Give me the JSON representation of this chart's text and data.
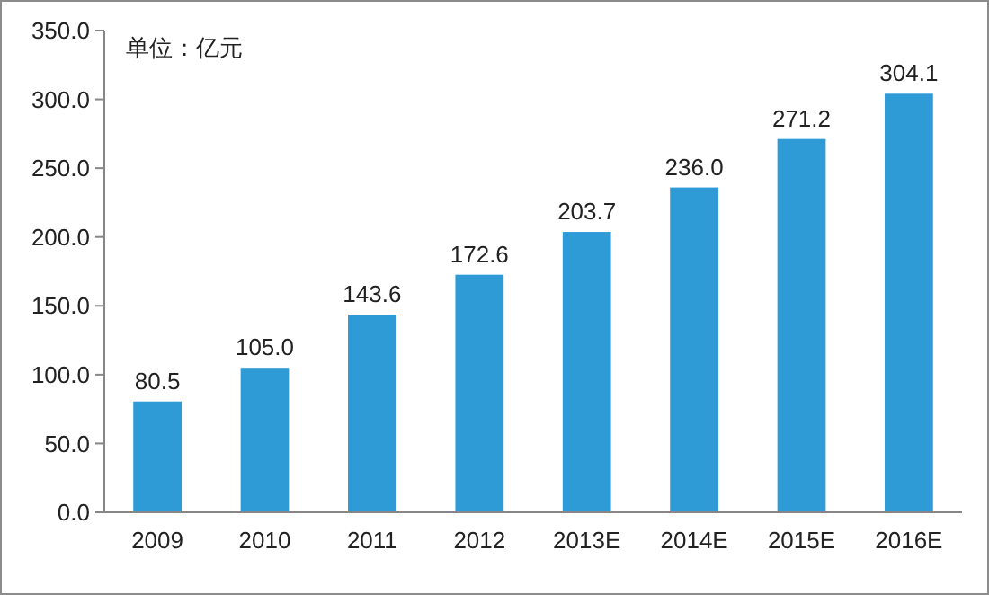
{
  "chart_data": {
    "type": "bar",
    "annotations": [
      "单位：亿元"
    ],
    "categories": [
      "2009",
      "2010",
      "2011",
      "2012",
      "2013E",
      "2014E",
      "2015E",
      "2016E"
    ],
    "values": [
      80.5,
      105.0,
      143.6,
      172.6,
      203.7,
      236.0,
      271.2,
      304.1
    ],
    "value_labels": [
      "80.5",
      "105.0",
      "143.6",
      "172.6",
      "203.7",
      "236.0",
      "271.2",
      "304.1"
    ],
    "color": "#2e9ad6",
    "ylim": [
      0,
      350
    ],
    "yticks": [
      {
        "value": 0,
        "label": "0.0"
      },
      {
        "value": 50,
        "label": "50.0"
      },
      {
        "value": 100,
        "label": "100.0"
      },
      {
        "value": 150,
        "label": "150.0"
      },
      {
        "value": 200,
        "label": "200.0"
      },
      {
        "value": 250,
        "label": "250.0"
      },
      {
        "value": 300,
        "label": "300.0"
      },
      {
        "value": 350,
        "label": "350.0"
      }
    ],
    "grid": false
  }
}
